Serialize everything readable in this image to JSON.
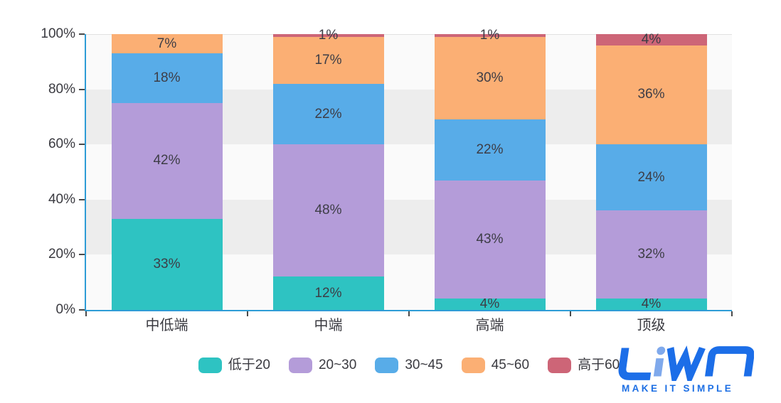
{
  "colors": {
    "axis": "#2E9CD6",
    "band_light": "#FAFAFA",
    "band_gray": "#EDEDED",
    "tick": "#4A4A4A",
    "axis_text": "#3A3A40",
    "data_label_text": "#3D3D46",
    "gridline": "#E2E2E2"
  },
  "chart_data": {
    "type": "bar",
    "variant": "stacked-percentage",
    "title": "",
    "categories": [
      "中低端",
      "中端",
      "高端",
      "顶级"
    ],
    "series": [
      {
        "name": "低于20",
        "color": "#2EC3C2",
        "values": [
          33,
          12,
          4,
          4
        ]
      },
      {
        "name": "20~30",
        "color": "#B49CD9",
        "values": [
          42,
          48,
          43,
          32
        ]
      },
      {
        "name": "30~45",
        "color": "#58ACE8",
        "values": [
          18,
          22,
          22,
          24
        ]
      },
      {
        "name": "45~60",
        "color": "#FBAF74",
        "values": [
          7,
          17,
          30,
          36
        ]
      },
      {
        "name": "高于60",
        "color": "#CD6577",
        "values": [
          0,
          1,
          1,
          4
        ]
      }
    ],
    "y_axis": {
      "ticks": [
        "0%",
        "20%",
        "40%",
        "60%",
        "80%",
        "100%"
      ],
      "min": 0,
      "max": 100
    },
    "data_label_suffix": "%",
    "legend_position": "bottom",
    "grid": "alternating-horizontal-bands"
  },
  "branding": {
    "logo_text": "LiWA",
    "tagline": "MAKE IT SIMPLE",
    "logo_color": "#1C6EE8",
    "logo_accent": "#7FA9EC"
  }
}
